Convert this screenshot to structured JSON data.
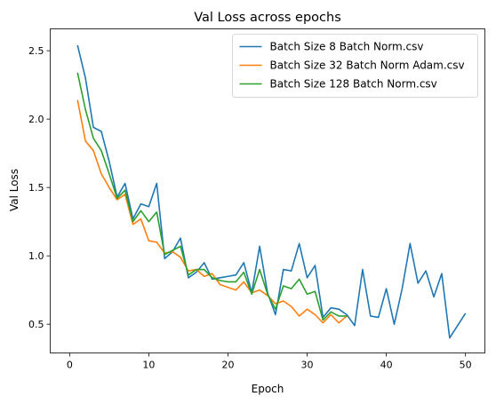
{
  "chart_data": {
    "type": "line",
    "title": "Val Loss across epochs",
    "xlabel": "Epoch",
    "ylabel": "Val Loss",
    "xlim": [
      -2.45,
      52.45
    ],
    "ylim": [
      0.29,
      2.66
    ],
    "xticks": [
      0,
      10,
      20,
      30,
      40,
      50
    ],
    "yticks": [
      0.5,
      1.0,
      1.5,
      2.0,
      2.5
    ],
    "grid": false,
    "legend_position": "top-right",
    "series": [
      {
        "name": "Batch Size 8 Batch Norm.csv",
        "color": "#1f77b4",
        "x": [
          1,
          2,
          3,
          4,
          5,
          6,
          7,
          8,
          9,
          10,
          11,
          12,
          13,
          14,
          15,
          16,
          17,
          18,
          19,
          20,
          21,
          22,
          23,
          24,
          25,
          26,
          27,
          28,
          29,
          30,
          31,
          32,
          33,
          34,
          35,
          36,
          37,
          38,
          39,
          40,
          41,
          42,
          43,
          44,
          45,
          46,
          47,
          48,
          49,
          50
        ],
        "values": [
          2.54,
          2.3,
          1.94,
          1.91,
          1.69,
          1.43,
          1.53,
          1.27,
          1.38,
          1.36,
          1.53,
          0.98,
          1.03,
          1.13,
          0.84,
          0.88,
          0.95,
          0.83,
          0.84,
          0.85,
          0.86,
          0.95,
          0.73,
          1.07,
          0.73,
          0.57,
          0.9,
          0.89,
          1.09,
          0.84,
          0.93,
          0.55,
          0.62,
          0.61,
          0.57,
          0.49,
          0.9,
          0.56,
          0.55,
          0.76,
          0.5,
          0.76,
          1.09,
          0.8,
          0.89,
          0.7,
          0.87,
          0.4,
          0.49,
          0.58
        ]
      },
      {
        "name": "Batch Size 32 Batch Norm Adam.csv",
        "color": "#ff7f0e",
        "x": [
          1,
          2,
          3,
          4,
          5,
          6,
          7,
          8,
          9,
          10,
          11,
          12,
          13,
          14,
          15,
          16,
          17,
          18,
          19,
          20,
          21,
          22,
          23,
          24,
          25,
          26,
          27,
          28,
          29,
          30,
          31,
          32,
          33,
          34,
          35
        ],
        "values": [
          2.14,
          1.84,
          1.77,
          1.6,
          1.5,
          1.41,
          1.45,
          1.23,
          1.27,
          1.11,
          1.1,
          1.02,
          1.03,
          0.99,
          0.89,
          0.9,
          0.85,
          0.87,
          0.79,
          0.77,
          0.75,
          0.81,
          0.73,
          0.75,
          0.71,
          0.65,
          0.67,
          0.63,
          0.56,
          0.61,
          0.57,
          0.51,
          0.57,
          0.51,
          0.56
        ]
      },
      {
        "name": "Batch Size 128 Batch Norm.csv",
        "color": "#2ca02c",
        "x": [
          1,
          2,
          3,
          4,
          5,
          6,
          7,
          8,
          9,
          10,
          11,
          12,
          13,
          14,
          15,
          16,
          17,
          18,
          19,
          20,
          21,
          22,
          23,
          24,
          25,
          26,
          27,
          28,
          29,
          30,
          31,
          32,
          33,
          34,
          35
        ],
        "values": [
          2.34,
          2.07,
          1.86,
          1.77,
          1.6,
          1.42,
          1.48,
          1.25,
          1.33,
          1.25,
          1.32,
          1.01,
          1.04,
          1.07,
          0.86,
          0.9,
          0.9,
          0.84,
          0.82,
          0.81,
          0.81,
          0.88,
          0.72,
          0.9,
          0.72,
          0.61,
          0.78,
          0.76,
          0.83,
          0.72,
          0.74,
          0.53,
          0.59,
          0.56,
          0.56
        ]
      }
    ]
  }
}
